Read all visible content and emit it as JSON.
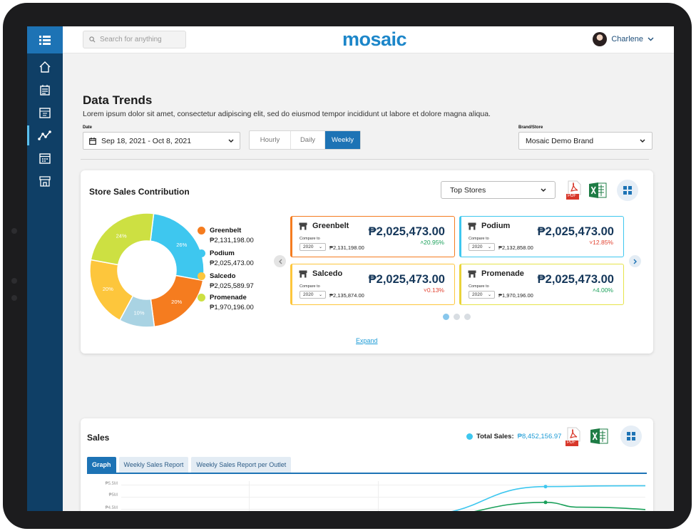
{
  "app": {
    "logo": "mosaic",
    "search_placeholder": "Search for anything",
    "user_name": "Charlene"
  },
  "colors": {
    "sidebar": "#0f3f66",
    "sidebar_active": "#1d73b5",
    "accent": "#1d73b5",
    "greenbelt": "#f57c1f",
    "podium": "#3ec7ef",
    "salcedo": "#fdc63c",
    "promenade": "#cde042"
  },
  "sidebar": {
    "items": [
      {
        "icon": "home-icon"
      },
      {
        "icon": "report-icon"
      },
      {
        "icon": "calendar-report-icon"
      },
      {
        "icon": "trends-icon",
        "active": true
      },
      {
        "icon": "schedule-icon"
      },
      {
        "icon": "store-icon"
      }
    ]
  },
  "header": {
    "title": "Data Trends",
    "subtitle": "Lorem ipsum dolor sit amet, consectetur adipiscing elit, sed do eiusmod tempor incididunt ut labore et dolore magna aliqua.",
    "date_label": "Date",
    "date_value": "Sep 18, 2021 - Oct 8, 2021",
    "periods": [
      "Hourly",
      "Daily",
      "Weekly"
    ],
    "selected_period": "Weekly",
    "brand_label": "Brand/Store",
    "brand_value": "Mosaic Demo Brand"
  },
  "contribution": {
    "title": "Store Sales Contribution",
    "filter_value": "Top Stores",
    "pdf_label": "PDF",
    "expand_label": "Expand",
    "carousel_pages": 3,
    "carousel_current": 1,
    "legend": [
      {
        "name": "Greenbelt",
        "value": "₱2,131,198.00"
      },
      {
        "name": "Podium",
        "value": "₱2,025,473.00"
      },
      {
        "name": "Salcedo",
        "value": "₱2,025,589.97"
      },
      {
        "name": "Promenade",
        "value": "₱1,970,196.00"
      }
    ],
    "stores": [
      {
        "name": "Greenbelt",
        "amount": "₱2,025,473.00",
        "change": "20.95%",
        "direction": "up",
        "compare_label": "Compare to",
        "compare_year": "2020",
        "compare_value": "₱2,131,198.00"
      },
      {
        "name": "Podium",
        "amount": "₱2,025,473.00",
        "change": "12.85%",
        "direction": "down",
        "compare_label": "Compare to",
        "compare_year": "2020",
        "compare_value": "₱2,132,858.00"
      },
      {
        "name": "Salcedo",
        "amount": "₱2,025,473.00",
        "change": "0.13%",
        "direction": "down",
        "compare_label": "Compare to",
        "compare_year": "2020",
        "compare_value": "₱2,135,874.00"
      },
      {
        "name": "Promenade",
        "amount": "₱2,025,473.00",
        "change": "4.00%",
        "direction": "up",
        "compare_label": "Compare to",
        "compare_year": "2020",
        "compare_value": "₱1,970,196.00"
      }
    ]
  },
  "sales": {
    "title": "Sales",
    "total_label": "Total Sales:",
    "total_value": "₱8,452,156.97",
    "pdf_label": "PDF",
    "tabs": [
      "Graph",
      "Weekly Sales Report",
      "Weekly Sales Report per Outlet"
    ],
    "active_tab": "Graph",
    "y_ticks": [
      "₱5.5M",
      "₱5M",
      "₱4.5M"
    ]
  },
  "chart_data": [
    {
      "type": "pie",
      "title": "",
      "categories": [
        "Podium",
        "Greenbelt",
        "Promenade",
        "Salcedo",
        "Promenade",
        "Salcedo"
      ],
      "values": [
        26,
        20,
        10,
        20,
        24,
        0
      ],
      "labels": [
        "26%",
        "20%",
        "10%",
        "20%",
        "24%"
      ],
      "slices": [
        {
          "label": "26%",
          "value": 26,
          "color": "#3ec7ef"
        },
        {
          "label": "20%",
          "value": 20,
          "color": "#f57c1f"
        },
        {
          "label": "10%",
          "value": 10,
          "color": "#a9d3e3"
        },
        {
          "label": "20%",
          "value": 20,
          "color": "#fdc63c"
        },
        {
          "label": "24%",
          "value": 24,
          "color": "#cde042"
        }
      ]
    },
    {
      "type": "line",
      "title": "",
      "ylabel": "",
      "ylim": [
        4.5,
        5.5
      ],
      "series": [
        {
          "color": "#3ec7ef",
          "x": [
            0,
            1,
            2,
            3
          ],
          "values": [
            4.3,
            5.45,
            5.48,
            5.49
          ]
        },
        {
          "color": "#1aa05a",
          "x": [
            0,
            1,
            2,
            3
          ],
          "values": [
            4.2,
            4.8,
            4.6,
            4.4
          ]
        }
      ]
    }
  ]
}
